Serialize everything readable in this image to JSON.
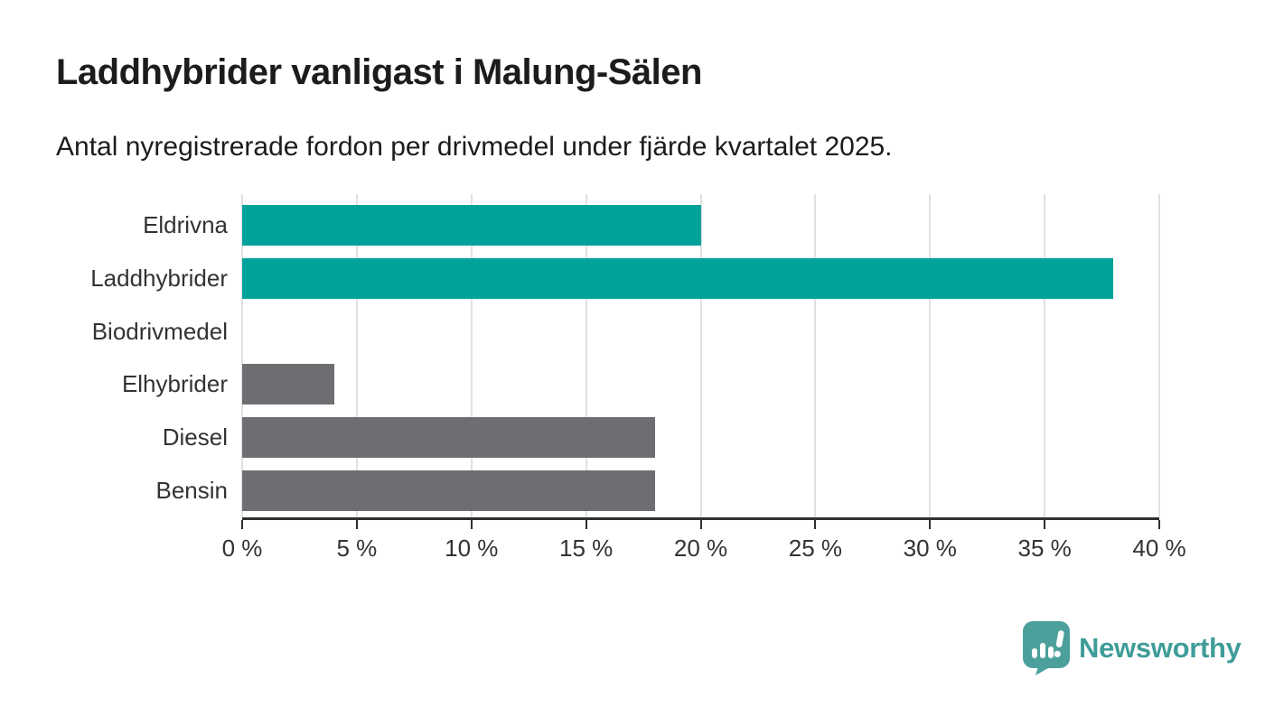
{
  "header": {
    "title": "Laddhybrider vanligast i Malung-Sälen",
    "subtitle": "Antal nyregistrerade fordon per drivmedel under fjärde kvartalet 2025."
  },
  "chart_data": {
    "type": "bar",
    "orientation": "horizontal",
    "title": "Laddhybrider vanligast i Malung-Sälen",
    "subtitle": "Antal nyregistrerade fordon per drivmedel under fjärde kvartalet 2025.",
    "categories": [
      "Eldrivna",
      "Laddhybrider",
      "Biodrivmedel",
      "Elhybrider",
      "Diesel",
      "Bensin"
    ],
    "values": [
      20,
      38,
      0,
      4,
      18,
      18
    ],
    "unit": "%",
    "bar_colors": [
      "#00a299",
      "#00a299",
      "#6d6d72",
      "#6d6d72",
      "#6d6d72",
      "#6d6d72"
    ],
    "highlight_color": "#00a299",
    "default_color": "#6d6d72",
    "xlim": [
      0,
      40
    ],
    "x_tick_step": 5,
    "x_tick_labels": [
      "0 %",
      "5 %",
      "10 %",
      "15 %",
      "20 %",
      "25 %",
      "30 %",
      "35 %",
      "40 %"
    ],
    "grid": true,
    "gridline_color": "#e1e1e1",
    "axis_color": "#2f2f2f",
    "legend": "none"
  },
  "footer": {
    "brand": "Newsworthy",
    "brand_color": "#3f9d99",
    "logo_icon_color": "#4ca09b",
    "logo_icon": "newsworthy-pin-chart-icon"
  }
}
